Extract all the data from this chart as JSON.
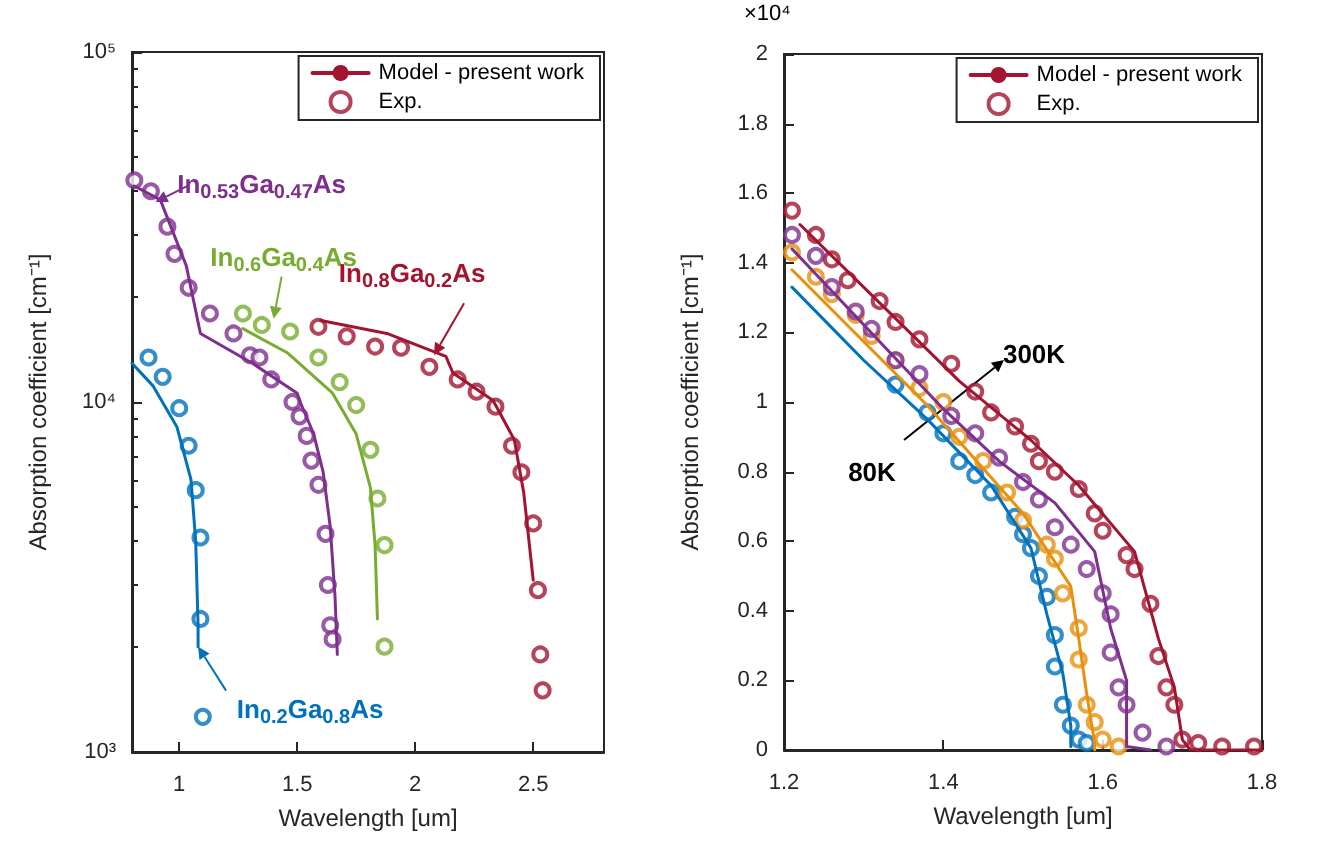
{
  "chart_data": [
    {
      "type": "line",
      "xlabel": "Wavelength [um]",
      "ylabel": "Absorption coefficient [cm⁻¹]",
      "log": "y",
      "xlim": [
        0.8,
        2.8
      ],
      "xticks": [
        1,
        1.5,
        2,
        2.5
      ],
      "ylim": [
        1000,
        100000
      ],
      "yticks": [
        {
          "value": 1000,
          "label": "10³"
        },
        {
          "value": 10000,
          "label": "10⁴"
        },
        {
          "value": 100000,
          "label": "10⁵"
        }
      ],
      "grid": false,
      "legend": "top right",
      "marker": "none",
      "line_style": "solid",
      "annotations": [
        {
          "text": "In$_{0.53}$Ga$_{0.47}$As",
          "x": 0.9,
          "y": 37300
        },
        {
          "text": "In$_{0.6}$Ga$_{0.4}$As",
          "x": 1.4,
          "y": 17300
        },
        {
          "text": "In$_{0.8}$Ga$_{0.2}$As",
          "x": 2.08,
          "y": 13600
        },
        {
          "text": "In$_{0.2}$Ga$_{0.8}$As",
          "x": 1.08,
          "y": 2000
        }
      ],
      "series": [
        {
          "type": "line",
          "color": "#7e2f8e",
          "x": [
            0.81,
            0.92,
            1.03,
            1.09,
            1.31,
            1.5,
            1.51,
            1.57,
            1.61,
            1.64,
            1.66,
            1.67
          ],
          "values": [
            41400,
            37800,
            24500,
            15700,
            12900,
            10600,
            10100,
            8100,
            6300,
            4400,
            2800,
            1900
          ]
        },
        {
          "type": "scatter",
          "marker": "circle",
          "color": "#7e2f8e",
          "x": [
            0.81,
            0.88,
            0.95,
            0.98,
            1.04,
            1.13,
            1.23,
            1.3,
            1.34,
            1.39,
            1.48,
            1.51,
            1.54,
            1.56,
            1.59,
            1.62,
            1.63,
            1.64,
            1.65
          ],
          "values": [
            43000,
            40000,
            31700,
            26500,
            21200,
            17900,
            15700,
            13600,
            13400,
            11600,
            10000,
            9100,
            8000,
            6800,
            5800,
            4200,
            3000,
            2300,
            2100
          ]
        },
        {
          "type": "line",
          "color": "#77ac30",
          "x": [
            1.27,
            1.46,
            1.65,
            1.75,
            1.81,
            1.83,
            1.84
          ],
          "values": [
            16200,
            13800,
            10600,
            8100,
            5700,
            3900,
            2400
          ]
        },
        {
          "type": "scatter",
          "marker": "circle",
          "color": "#77ac30",
          "x": [
            1.27,
            1.35,
            1.47,
            1.59,
            1.68,
            1.75,
            1.81,
            1.84,
            1.87,
            1.87
          ],
          "values": [
            17900,
            16600,
            15900,
            13400,
            11400,
            9800,
            7300,
            5300,
            3900,
            2000
          ]
        },
        {
          "type": "line",
          "name": "Model - present work",
          "color": "#a2142f",
          "x": [
            1.6,
            1.88,
            2.13,
            2.16,
            2.33,
            2.42,
            2.46,
            2.5
          ],
          "values": [
            17100,
            15700,
            13500,
            12100,
            10100,
            7800,
            5500,
            3100
          ]
        },
        {
          "type": "scatter",
          "name": "Exp.",
          "marker": "circle",
          "color": "#a2142f",
          "x": [
            1.59,
            1.71,
            1.83,
            1.94,
            2.06,
            2.18,
            2.26,
            2.34,
            2.41,
            2.45,
            2.5,
            2.52,
            2.53,
            2.54
          ],
          "values": [
            16400,
            15400,
            14400,
            14300,
            12600,
            11600,
            10700,
            9700,
            7500,
            6300,
            4500,
            2900,
            1900,
            1500
          ]
        },
        {
          "type": "line",
          "color": "#0072bd",
          "x": [
            0.8,
            0.89,
            0.99,
            1.05,
            1.07,
            1.08,
            1.08
          ],
          "values": [
            12900,
            11100,
            8500,
            6000,
            4000,
            2300,
            2000
          ]
        },
        {
          "type": "scatter",
          "marker": "circle",
          "color": "#0072bd",
          "x": [
            0.87,
            0.93,
            1.0,
            1.04,
            1.07,
            1.09,
            1.09,
            1.1
          ],
          "values": [
            13400,
            11800,
            9600,
            7500,
            5600,
            4100,
            2400,
            1260
          ]
        }
      ]
    },
    {
      "type": "line",
      "xlabel": "Wavelength [um]",
      "ylabel": "Absorption coefficient [cm⁻¹]",
      "xlim": [
        1.2,
        1.8
      ],
      "xticks": [
        1.2,
        1.4,
        1.6,
        1.8
      ],
      "ylim": [
        0,
        2
      ],
      "yticks": [
        0,
        0.2,
        0.4,
        0.6,
        0.8,
        1,
        1.2,
        1.4,
        1.6,
        1.8,
        2
      ],
      "grid": false,
      "legend": "top right",
      "marker": "none",
      "line_style": "solid",
      "annotations": [
        "×10⁴",
        "300K",
        "80K"
      ],
      "series": [
        {
          "type": "line",
          "color": "#0072bd",
          "x": [
            1.21,
            1.3,
            1.38,
            1.46,
            1.51,
            1.53,
            1.55,
            1.56,
            1.56
          ],
          "values": [
            1.33,
            1.12,
            0.95,
            0.76,
            0.58,
            0.39,
            0.22,
            0.07,
            0.01
          ]
        },
        {
          "type": "scatter",
          "marker": "circle",
          "color": "#0072bd",
          "x": [
            1.34,
            1.38,
            1.4,
            1.42,
            1.44,
            1.46,
            1.49,
            1.5,
            1.51,
            1.52,
            1.53,
            1.54,
            1.54,
            1.55,
            1.56,
            1.57,
            1.58
          ],
          "values": [
            1.05,
            0.97,
            0.91,
            0.83,
            0.79,
            0.74,
            0.67,
            0.62,
            0.58,
            0.5,
            0.44,
            0.33,
            0.24,
            0.13,
            0.07,
            0.03,
            0.02
          ]
        },
        {
          "type": "line",
          "color": "#e8900c",
          "x": [
            1.21,
            1.38,
            1.5,
            1.56,
            1.57,
            1.58,
            1.59,
            1.59
          ],
          "values": [
            1.38,
            0.99,
            0.68,
            0.47,
            0.32,
            0.16,
            0.02,
            0
          ]
        },
        {
          "type": "scatter",
          "marker": "circle",
          "color": "#e8900c",
          "x": [
            1.21,
            1.24,
            1.26,
            1.29,
            1.31,
            1.34,
            1.37,
            1.4,
            1.42,
            1.45,
            1.48,
            1.5,
            1.53,
            1.54,
            1.55,
            1.57,
            1.57,
            1.58,
            1.59,
            1.6,
            1.62
          ],
          "values": [
            1.43,
            1.36,
            1.31,
            1.25,
            1.19,
            1.12,
            1.04,
            1.0,
            0.9,
            0.83,
            0.74,
            0.66,
            0.59,
            0.55,
            0.45,
            0.35,
            0.26,
            0.13,
            0.08,
            0.03,
            0.01
          ]
        },
        {
          "type": "line",
          "color": "#7e2f8e",
          "x": [
            1.21,
            1.4,
            1.47,
            1.54,
            1.59,
            1.61,
            1.63,
            1.63,
            1.66
          ],
          "values": [
            1.44,
            0.98,
            0.83,
            0.71,
            0.57,
            0.35,
            0.2,
            0.01,
            0
          ]
        },
        {
          "type": "scatter",
          "marker": "circle",
          "color": "#7e2f8e",
          "x": [
            1.21,
            1.24,
            1.26,
            1.29,
            1.31,
            1.34,
            1.37,
            1.41,
            1.44,
            1.47,
            1.5,
            1.52,
            1.54,
            1.56,
            1.58,
            1.6,
            1.61,
            1.61,
            1.62,
            1.63,
            1.65,
            1.68
          ],
          "values": [
            1.48,
            1.42,
            1.33,
            1.26,
            1.21,
            1.12,
            1.08,
            0.96,
            0.91,
            0.84,
            0.77,
            0.72,
            0.64,
            0.59,
            0.52,
            0.45,
            0.39,
            0.28,
            0.18,
            0.13,
            0.05,
            0.01
          ]
        },
        {
          "type": "line",
          "name": "Model - present work",
          "color": "#a2142f",
          "x": [
            1.22,
            1.42,
            1.51,
            1.57,
            1.64,
            1.67,
            1.69,
            1.7,
            1.71,
            1.8
          ],
          "values": [
            1.51,
            1.06,
            0.89,
            0.76,
            0.57,
            0.32,
            0.18,
            0.03,
            0,
            0
          ]
        },
        {
          "type": "scatter",
          "name": "Exp.",
          "marker": "circle",
          "color": "#a2142f",
          "x": [
            1.21,
            1.24,
            1.26,
            1.28,
            1.32,
            1.34,
            1.37,
            1.41,
            1.44,
            1.46,
            1.49,
            1.51,
            1.52,
            1.54,
            1.57,
            1.59,
            1.6,
            1.63,
            1.64,
            1.66,
            1.67,
            1.68,
            1.69,
            1.7,
            1.72,
            1.75,
            1.79
          ],
          "values": [
            1.55,
            1.48,
            1.41,
            1.35,
            1.29,
            1.23,
            1.18,
            1.11,
            1.03,
            0.97,
            0.93,
            0.88,
            0.83,
            0.8,
            0.75,
            0.68,
            0.63,
            0.56,
            0.52,
            0.42,
            0.27,
            0.18,
            0.13,
            0.03,
            0.02,
            0.01,
            0.01
          ]
        }
      ]
    }
  ]
}
